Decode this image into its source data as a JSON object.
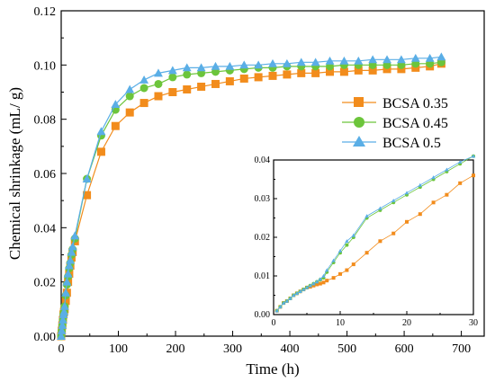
{
  "colors": {
    "s035": "#f28c1c",
    "s045": "#6cc53b",
    "s05": "#5aaee6"
  },
  "chart_data": [
    {
      "type": "line",
      "xlabel": "Time (h)",
      "ylabel": "Chemical shrinkage (mL/ g)",
      "xlim": [
        0,
        740
      ],
      "ylim": [
        0,
        0.12
      ],
      "x_ticks": [
        "0",
        "100",
        "200",
        "300",
        "400",
        "500",
        "600",
        "700"
      ],
      "y_ticks": [
        "0.00",
        "0.02",
        "0.04",
        "0.06",
        "0.08",
        "0.10",
        "0.12"
      ],
      "legend_position": "right-middle",
      "series": [
        {
          "name": "BCSA 0.35",
          "marker": "square",
          "color": "s035",
          "x": [
            0,
            1,
            2,
            3,
            4,
            5,
            6,
            8,
            10,
            12,
            14,
            16,
            18,
            20,
            24,
            45,
            70,
            95,
            120,
            145,
            170,
            195,
            220,
            245,
            270,
            295,
            320,
            345,
            370,
            395,
            420,
            445,
            470,
            495,
            520,
            545,
            570,
            595,
            620,
            645,
            665
          ],
          "y": [
            0,
            0.002,
            0.004,
            0.006,
            0.008,
            0.009,
            0.01,
            0.013,
            0.016,
            0.02,
            0.023,
            0.026,
            0.029,
            0.031,
            0.035,
            0.052,
            0.068,
            0.0775,
            0.0825,
            0.086,
            0.0885,
            0.09,
            0.091,
            0.092,
            0.093,
            0.094,
            0.095,
            0.0955,
            0.096,
            0.0965,
            0.097,
            0.097,
            0.0975,
            0.0975,
            0.098,
            0.098,
            0.0985,
            0.0985,
            0.099,
            0.0995,
            0.1005
          ]
        },
        {
          "name": "BCSA 0.45",
          "marker": "circle",
          "color": "s045",
          "x": [
            0,
            1,
            2,
            3,
            4,
            5,
            6,
            8,
            10,
            12,
            14,
            16,
            18,
            20,
            24,
            45,
            70,
            95,
            120,
            145,
            170,
            195,
            220,
            245,
            270,
            295,
            320,
            345,
            370,
            395,
            420,
            445,
            470,
            495,
            520,
            545,
            570,
            595,
            620,
            645,
            665
          ],
          "y": [
            0,
            0.002,
            0.004,
            0.006,
            0.008,
            0.009,
            0.011,
            0.015,
            0.019,
            0.022,
            0.025,
            0.027,
            0.03,
            0.032,
            0.036,
            0.058,
            0.074,
            0.0835,
            0.0885,
            0.0915,
            0.093,
            0.0955,
            0.0965,
            0.097,
            0.0975,
            0.098,
            0.0985,
            0.099,
            0.099,
            0.0995,
            0.0995,
            0.0995,
            0.0995,
            0.1,
            0.1,
            0.1,
            0.1,
            0.1,
            0.1005,
            0.1005,
            0.101
          ]
        },
        {
          "name": "BCSA 0.5",
          "marker": "triangle",
          "color": "s05",
          "x": [
            0,
            1,
            2,
            3,
            4,
            5,
            6,
            8,
            10,
            12,
            14,
            16,
            18,
            20,
            24,
            45,
            70,
            95,
            120,
            145,
            170,
            195,
            220,
            245,
            270,
            295,
            320,
            345,
            370,
            395,
            420,
            445,
            470,
            495,
            520,
            545,
            570,
            595,
            620,
            645,
            665
          ],
          "y": [
            0,
            0.002,
            0.004,
            0.006,
            0.008,
            0.009,
            0.011,
            0.016,
            0.02,
            0.023,
            0.026,
            0.028,
            0.031,
            0.033,
            0.037,
            0.058,
            0.0755,
            0.0855,
            0.091,
            0.0945,
            0.097,
            0.098,
            0.099,
            0.099,
            0.0995,
            0.0995,
            0.1,
            0.1,
            0.1005,
            0.1005,
            0.101,
            0.101,
            0.1015,
            0.1015,
            0.1015,
            0.102,
            0.102,
            0.102,
            0.1025,
            0.1025,
            0.103
          ]
        }
      ]
    },
    {
      "type": "line",
      "xlim": [
        0,
        30
      ],
      "ylim": [
        0,
        0.04
      ],
      "x_ticks": [
        "0",
        "10",
        "20",
        "30"
      ],
      "y_ticks": [
        "0.00",
        "0.01",
        "0.02",
        "0.03",
        "0.04"
      ],
      "series": [
        {
          "marker": "square",
          "color": "s035",
          "x": [
            0.5,
            1,
            1.5,
            2,
            2.5,
            3,
            3.5,
            4,
            4.5,
            5,
            5.5,
            6,
            6.5,
            7,
            7.5,
            8,
            9,
            10,
            11,
            12,
            14,
            16,
            18,
            20,
            22,
            24,
            26,
            28,
            30
          ],
          "y": [
            0.001,
            0.002,
            0.003,
            0.0035,
            0.0042,
            0.005,
            0.0055,
            0.006,
            0.0065,
            0.007,
            0.0072,
            0.0075,
            0.0078,
            0.008,
            0.0083,
            0.0088,
            0.0095,
            0.0105,
            0.0115,
            0.013,
            0.016,
            0.019,
            0.021,
            0.024,
            0.026,
            0.029,
            0.031,
            0.034,
            0.036
          ]
        },
        {
          "marker": "circle",
          "color": "s045",
          "x": [
            0.5,
            1,
            1.5,
            2,
            2.5,
            3,
            3.5,
            4,
            4.5,
            5,
            5.5,
            6,
            6.5,
            7,
            7.5,
            8,
            9,
            10,
            11,
            12,
            14,
            16,
            18,
            20,
            22,
            24,
            26,
            28,
            30
          ],
          "y": [
            0.001,
            0.002,
            0.003,
            0.0035,
            0.0042,
            0.005,
            0.0055,
            0.006,
            0.0065,
            0.007,
            0.0075,
            0.008,
            0.0085,
            0.009,
            0.0095,
            0.011,
            0.0135,
            0.016,
            0.018,
            0.02,
            0.025,
            0.027,
            0.029,
            0.031,
            0.033,
            0.035,
            0.037,
            0.039,
            0.041
          ]
        },
        {
          "marker": "triangle",
          "color": "s05",
          "x": [
            0.5,
            1,
            1.5,
            2,
            2.5,
            3,
            3.5,
            4,
            4.5,
            5,
            5.5,
            6,
            6.5,
            7,
            7.5,
            8,
            9,
            10,
            11,
            12,
            14,
            16,
            18,
            20,
            22,
            24,
            26,
            28,
            30
          ],
          "y": [
            0.001,
            0.002,
            0.003,
            0.0035,
            0.0042,
            0.005,
            0.0055,
            0.006,
            0.0065,
            0.007,
            0.0075,
            0.008,
            0.0085,
            0.0092,
            0.01,
            0.0115,
            0.014,
            0.0165,
            0.019,
            0.0205,
            0.0255,
            0.0275,
            0.0295,
            0.0315,
            0.0335,
            0.0355,
            0.0375,
            0.0395,
            0.041
          ]
        }
      ]
    }
  ]
}
